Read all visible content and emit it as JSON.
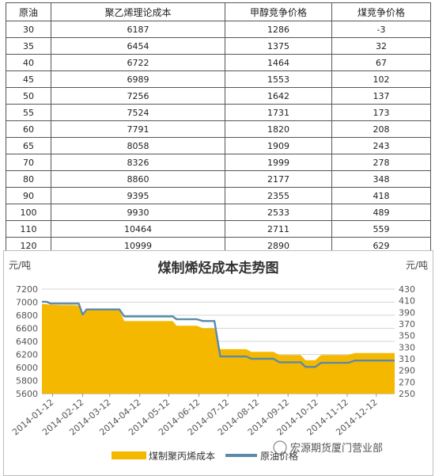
{
  "table": {
    "headers": [
      "原油",
      "聚乙烯理论成本",
      "甲醇竞争价格",
      "煤竞争价格"
    ],
    "rows": [
      [
        "30",
        "6187",
        "1286",
        "-3"
      ],
      [
        "35",
        "6454",
        "1375",
        "32"
      ],
      [
        "40",
        "6722",
        "1464",
        "67"
      ],
      [
        "45",
        "6989",
        "1553",
        "102"
      ],
      [
        "50",
        "7256",
        "1642",
        "137"
      ],
      [
        "55",
        "7524",
        "1731",
        "173"
      ],
      [
        "60",
        "7791",
        "1820",
        "208"
      ],
      [
        "65",
        "8058",
        "1909",
        "243"
      ],
      [
        "70",
        "8326",
        "1999",
        "278"
      ],
      [
        "80",
        "8860",
        "2177",
        "348"
      ],
      [
        "90",
        "9395",
        "2355",
        "418"
      ],
      [
        "100",
        "9930",
        "2533",
        "489"
      ],
      [
        "110",
        "10464",
        "2711",
        "559"
      ],
      [
        "120",
        "10999",
        "2890",
        "629"
      ]
    ]
  },
  "chart_data": [
    {
      "type": "table",
      "columns": [
        "原油",
        "聚乙烯理论成本",
        "甲醇竞争价格",
        "煤竞争价格"
      ],
      "rows": [
        [
          30,
          6187,
          1286,
          -3
        ],
        [
          35,
          6454,
          1375,
          32
        ],
        [
          40,
          6722,
          1464,
          67
        ],
        [
          45,
          6989,
          1553,
          102
        ],
        [
          50,
          7256,
          1642,
          137
        ],
        [
          55,
          7524,
          1731,
          173
        ],
        [
          60,
          7791,
          1820,
          208
        ],
        [
          65,
          8058,
          1909,
          243
        ],
        [
          70,
          8326,
          1999,
          278
        ],
        [
          80,
          8860,
          2177,
          348
        ],
        [
          90,
          9395,
          2355,
          418
        ],
        [
          100,
          9930,
          2533,
          489
        ],
        [
          110,
          10464,
          2711,
          559
        ],
        [
          120,
          10999,
          2890,
          629
        ]
      ]
    },
    {
      "type": "area",
      "title": "煤制烯烃成本走势图",
      "left_unit": "元/吨",
      "right_unit": "元/吨",
      "xlim": [
        "2014-01-01",
        "2014-12-31"
      ],
      "x_ticks": [
        "2014-01-12",
        "2014-02-12",
        "2014-03-12",
        "2014-04-12",
        "2014-05-12",
        "2014-06-12",
        "2014-07-12",
        "2014-08-12",
        "2014-09-12",
        "2014-10-12",
        "2014-11-12",
        "2014-12-12"
      ],
      "ylim_left": [
        5600,
        7200
      ],
      "yticks_left": [
        5600,
        5800,
        6000,
        6200,
        6400,
        6600,
        6800,
        7000,
        7200
      ],
      "ylim_right": [
        250,
        430
      ],
      "yticks_right": [
        250,
        270,
        290,
        310,
        330,
        350,
        370,
        390,
        410,
        430
      ],
      "grid": true,
      "legend": "bottom",
      "series": [
        {
          "name": "煤制聚丙烯成本",
          "axis": "left",
          "color": "#f5b800",
          "points": [
            [
              "2014-01-01",
              6970
            ],
            [
              "2014-01-05",
              6970
            ],
            [
              "2014-01-10",
              6960
            ],
            [
              "2014-01-20",
              6955
            ],
            [
              "2014-02-01",
              6955
            ],
            [
              "2014-02-08",
              6950
            ],
            [
              "2014-02-12",
              6780
            ],
            [
              "2014-02-16",
              6880
            ],
            [
              "2014-03-01",
              6880
            ],
            [
              "2014-03-22",
              6880
            ],
            [
              "2014-03-27",
              6710
            ],
            [
              "2014-04-12",
              6710
            ],
            [
              "2014-05-01",
              6710
            ],
            [
              "2014-05-16",
              6710
            ],
            [
              "2014-05-20",
              6640
            ],
            [
              "2014-06-10",
              6640
            ],
            [
              "2014-06-16",
              6600
            ],
            [
              "2014-06-28",
              6600
            ],
            [
              "2014-07-04",
              6280
            ],
            [
              "2014-07-31",
              6280
            ],
            [
              "2014-08-05",
              6240
            ],
            [
              "2014-08-28",
              6240
            ],
            [
              "2014-09-03",
              6190
            ],
            [
              "2014-09-25",
              6190
            ],
            [
              "2014-09-30",
              6110
            ],
            [
              "2014-10-10",
              6110
            ],
            [
              "2014-10-16",
              6190
            ],
            [
              "2014-11-13",
              6190
            ],
            [
              "2014-11-20",
              6220
            ],
            [
              "2014-12-31",
              6220
            ]
          ]
        },
        {
          "name": "原油价格",
          "axis": "right",
          "color": "#5b8aa8",
          "points": [
            [
              "2014-01-01",
              408
            ],
            [
              "2014-01-06",
              408
            ],
            [
              "2014-01-10",
              405
            ],
            [
              "2014-02-08",
              405
            ],
            [
              "2014-02-12",
              386
            ],
            [
              "2014-02-16",
              395
            ],
            [
              "2014-03-22",
              395
            ],
            [
              "2014-03-27",
              383
            ],
            [
              "2014-05-16",
              383
            ],
            [
              "2014-05-20",
              378
            ],
            [
              "2014-06-10",
              378
            ],
            [
              "2014-06-16",
              375
            ],
            [
              "2014-06-28",
              375
            ],
            [
              "2014-07-04",
              314
            ],
            [
              "2014-07-31",
              314
            ],
            [
              "2014-08-05",
              310
            ],
            [
              "2014-08-28",
              310
            ],
            [
              "2014-09-03",
              304
            ],
            [
              "2014-09-25",
              304
            ],
            [
              "2014-09-30",
              296
            ],
            [
              "2014-10-10",
              296
            ],
            [
              "2014-10-16",
              303
            ],
            [
              "2014-11-13",
              303
            ],
            [
              "2014-11-20",
              307
            ],
            [
              "2014-12-31",
              307
            ]
          ]
        }
      ]
    }
  ],
  "chart": {
    "title": "煤制烯烃成本走势图",
    "left_unit": "元/吨",
    "right_unit": "元/吨",
    "legend": [
      "煤制聚丙烯成本",
      "原油价格"
    ],
    "watermark": "宏源期货厦门营业部"
  }
}
